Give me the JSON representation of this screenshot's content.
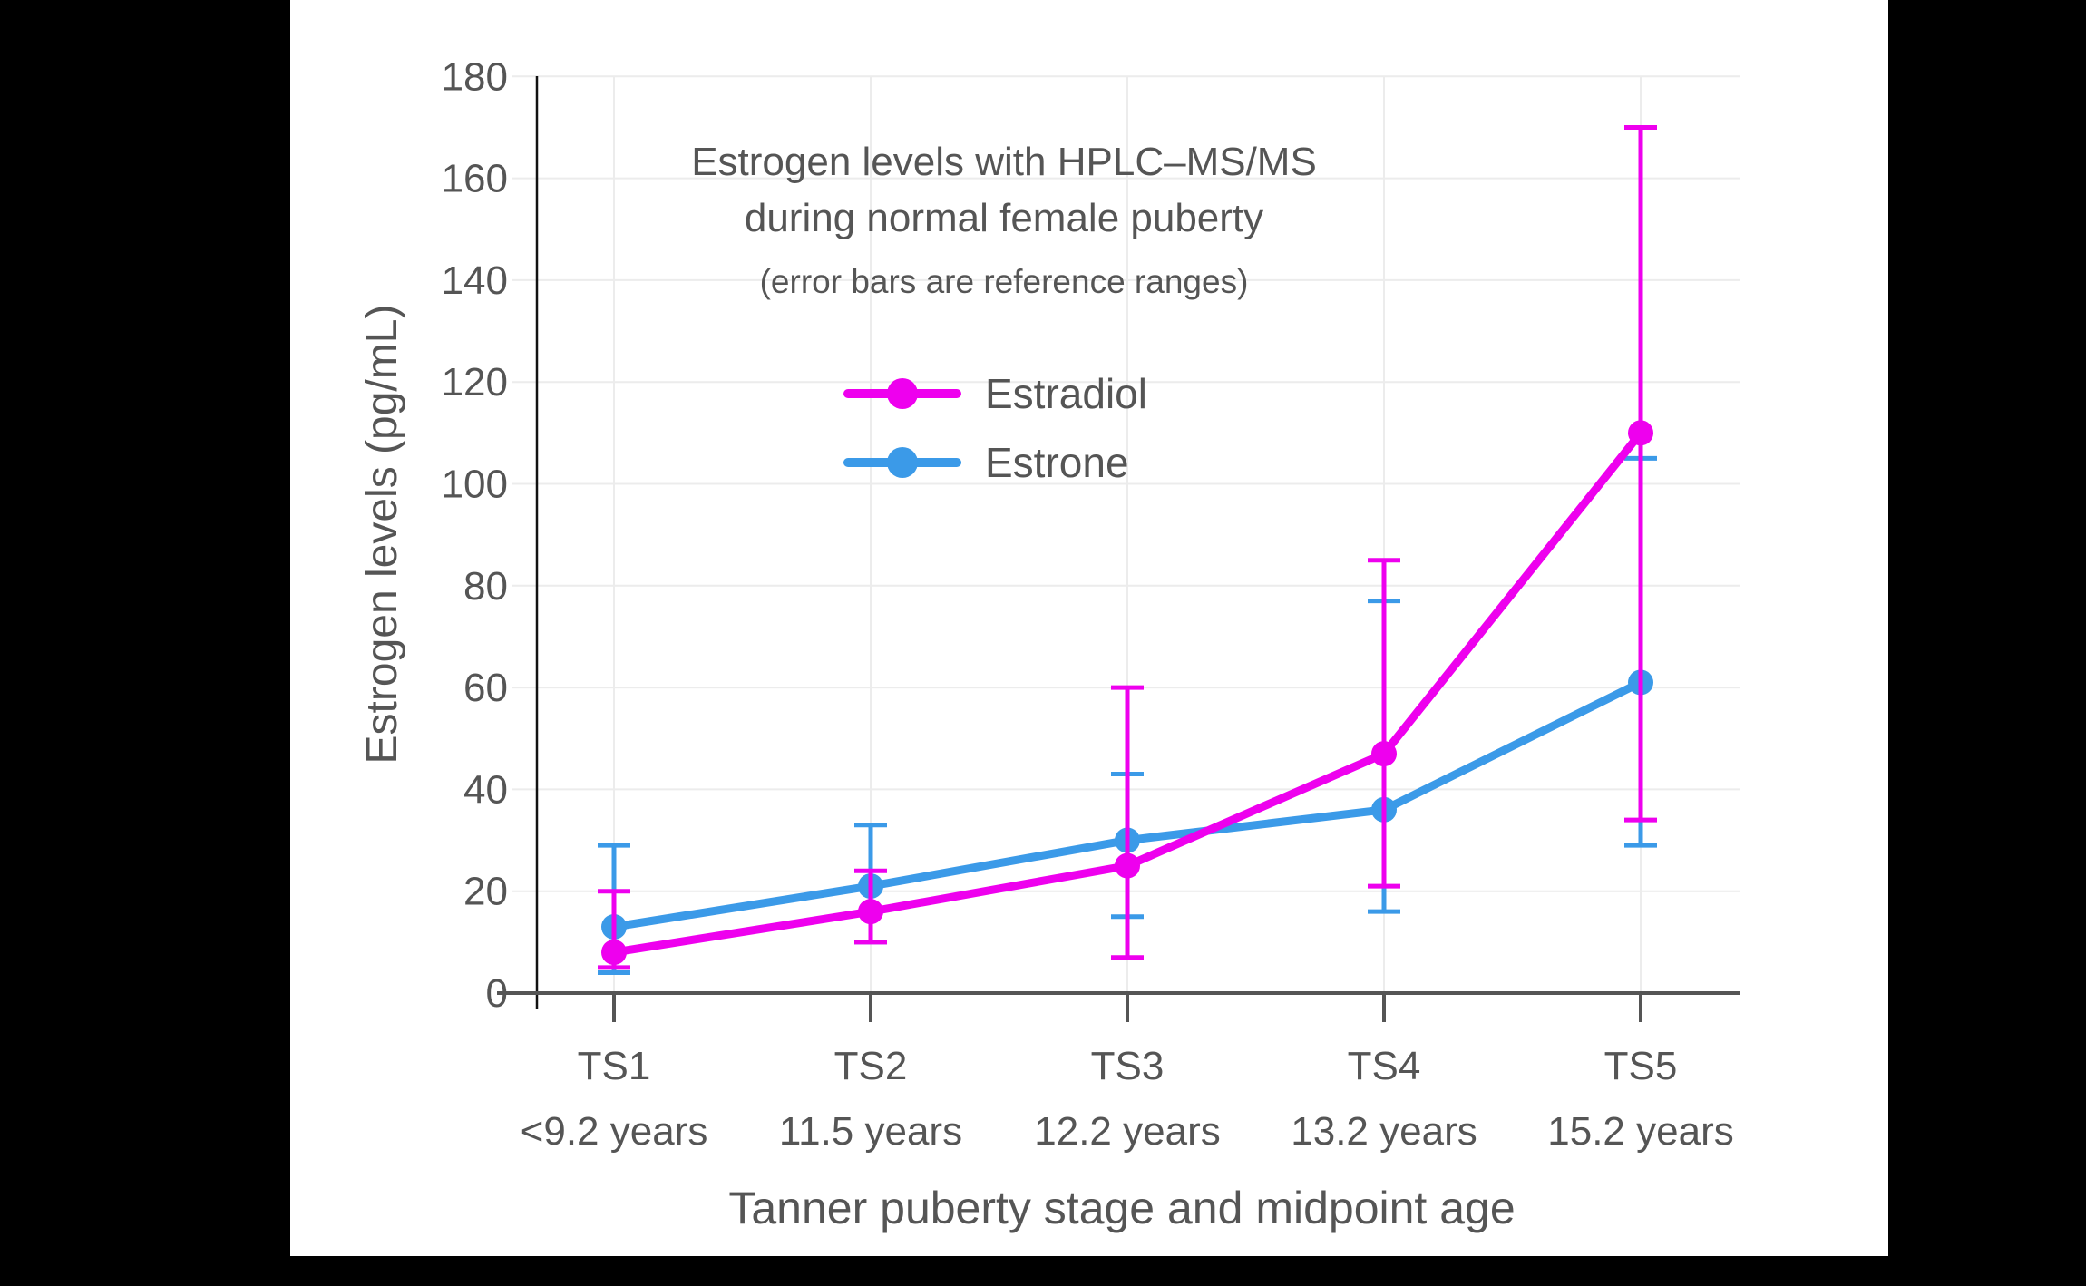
{
  "frame": {
    "background_color": "#000000",
    "panel_color": "#ffffff"
  },
  "palette": {
    "text_color": "#555555",
    "grid_color": "#ececec",
    "x_axis_color": "#555555",
    "y_axis_color": "#111111"
  },
  "chart_data": {
    "type": "line",
    "title_line1": "Estrogen levels with HPLC–MS/MS",
    "title_line2": "during normal female puberty",
    "subtitle": "(error bars are reference ranges)",
    "ylabel": "Estrogen levels (pg/mL)",
    "xlabel": "Tanner puberty stage and midpoint age",
    "categories": [
      "TS1",
      "TS2",
      "TS3",
      "TS4",
      "TS5"
    ],
    "category_sublabels": [
      "<9.2 years",
      "11.5 years",
      "12.2 years",
      "13.2 years",
      "15.2 years"
    ],
    "y_ticks": [
      0,
      20,
      40,
      60,
      80,
      100,
      120,
      140,
      160,
      180
    ],
    "ylim": [
      0,
      187
    ],
    "grid": true,
    "legend_position": "upper-center",
    "error_bar_meaning": "reference ranges",
    "series": [
      {
        "name": "Estradiol",
        "color": "#EE00EE",
        "values": [
          8,
          16,
          25,
          47,
          110
        ],
        "err_low": [
          5,
          10,
          7,
          21,
          34
        ],
        "err_high": [
          20,
          24,
          60,
          85,
          170
        ]
      },
      {
        "name": "Estrone",
        "color": "#3B9AE8",
        "values": [
          13,
          21,
          30,
          36,
          61
        ],
        "err_low": [
          4,
          10,
          15,
          16,
          29
        ],
        "err_high": [
          29,
          33,
          43,
          77,
          105
        ]
      }
    ]
  }
}
